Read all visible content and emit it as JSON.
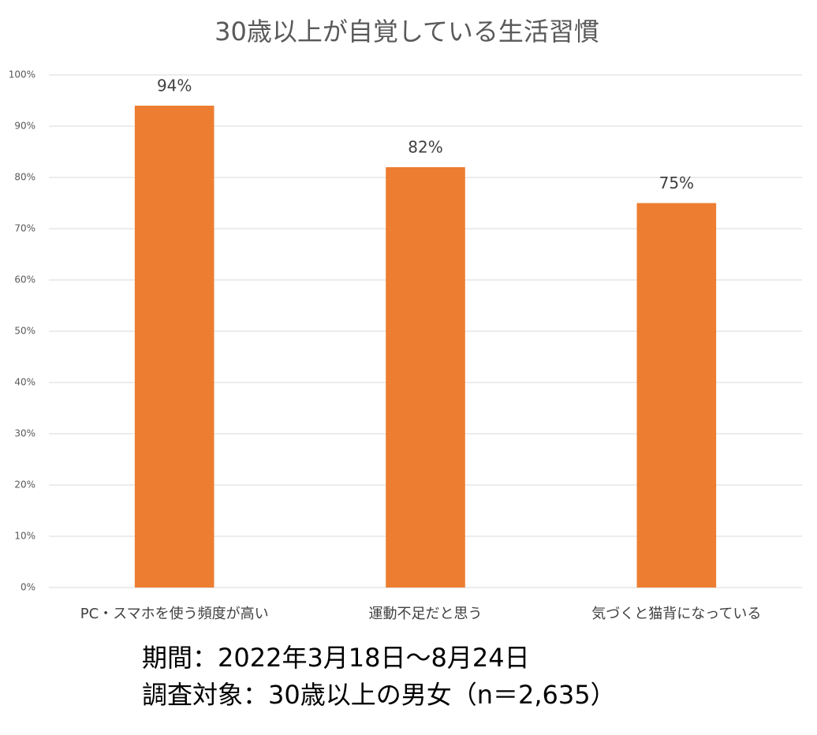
{
  "chart_data": {
    "type": "bar",
    "title": "30歳以上が自覚している生活習慣",
    "categories": [
      "PC・スマホを使う頻度が高い",
      "運動不足だと思う",
      "気づくと猫背になっている"
    ],
    "values": [
      94,
      82,
      75
    ],
    "value_labels": [
      "94%",
      "82%",
      "75%"
    ],
    "color": "#ed7d31",
    "ylim": [
      0,
      100
    ],
    "yticks": [
      {
        "value": 0,
        "label": "0%"
      },
      {
        "value": 10,
        "label": "10%"
      },
      {
        "value": 20,
        "label": "20%"
      },
      {
        "value": 30,
        "label": "30%"
      },
      {
        "value": 40,
        "label": "40%"
      },
      {
        "value": 50,
        "label": "50%"
      },
      {
        "value": 60,
        "label": "60%"
      },
      {
        "value": 70,
        "label": "70%"
      },
      {
        "value": 80,
        "label": "80%"
      },
      {
        "value": 90,
        "label": "90%"
      },
      {
        "value": 100,
        "label": "100%"
      }
    ],
    "grid": true,
    "footnotes": [
      "期間：2022年3月18日～8月24日",
      "調査対象：30歳以上の男女（n＝2,635）"
    ]
  }
}
